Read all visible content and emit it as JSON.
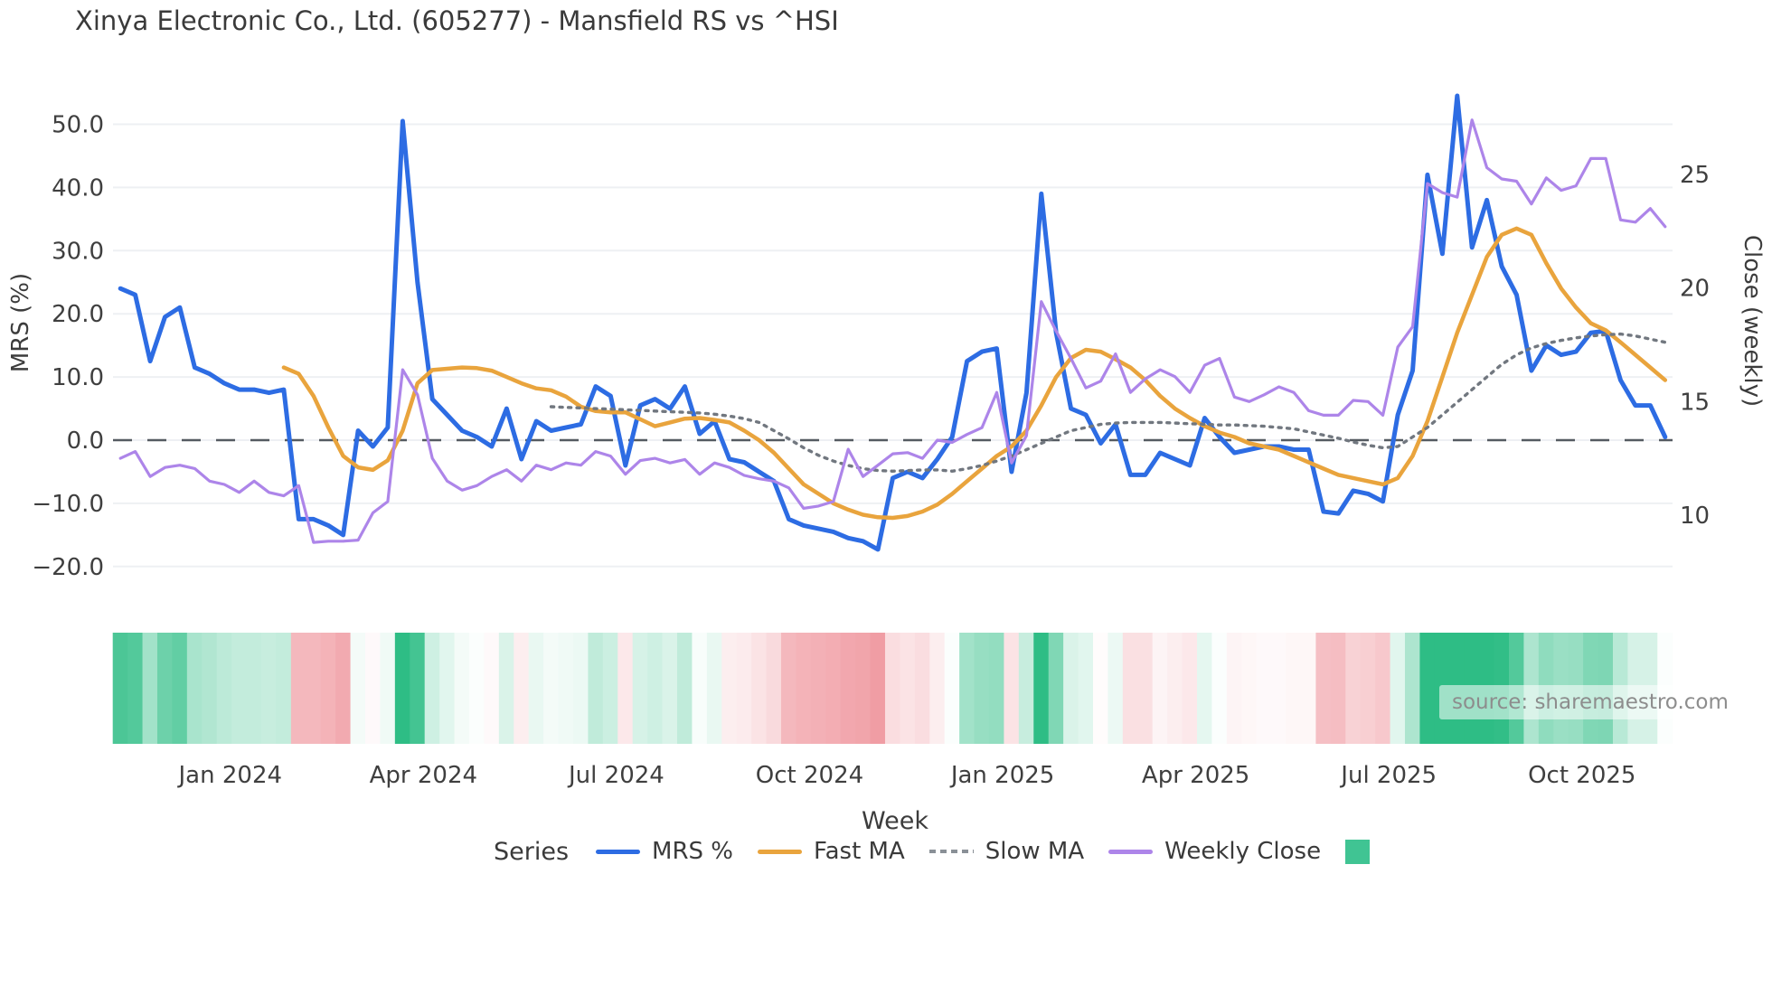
{
  "title": "Xinya Electronic Co., Ltd. (605277) - Mansfield RS vs ^HSI",
  "source_note": "source: sharemaestro.com",
  "legend": {
    "title": "Series",
    "entries": [
      {
        "label": "MRS %",
        "swatch": "line",
        "color": "#2d6ce3"
      },
      {
        "label": "Fast MA",
        "swatch": "line",
        "color": "#e9a43d"
      },
      {
        "label": "Slow MA",
        "swatch": "dashed",
        "color": "#8a9097"
      },
      {
        "label": "Weekly Close",
        "swatch": "line",
        "color": "#ad85e9"
      },
      {
        "label": "",
        "swatch": "square",
        "color": "#40c493"
      }
    ]
  },
  "chart_data": {
    "type": "line",
    "title": "Xinya Electronic Co., Ltd. (605277) - Mansfield RS vs ^HSI",
    "xlabel": "Week",
    "ylabel_left": "MRS (%)",
    "ylabel_right": "Close (weekly)",
    "weeks": 105,
    "x_ticks": [
      {
        "label": "Jan 2024",
        "week": 7.4
      },
      {
        "label": "Apr 2024",
        "week": 20.4
      },
      {
        "label": "Jul 2024",
        "week": 33.4
      },
      {
        "label": "Oct 2024",
        "week": 46.4
      },
      {
        "label": "Jan 2025",
        "week": 59.4
      },
      {
        "label": "Apr 2025",
        "week": 72.4
      },
      {
        "label": "Jul 2025",
        "week": 85.4
      },
      {
        "label": "Oct 2025",
        "week": 98.4
      }
    ],
    "y_left_ticks": [
      {
        "label": "50.0",
        "value": 50
      },
      {
        "label": "40.0",
        "value": 40
      },
      {
        "label": "30.0",
        "value": 30
      },
      {
        "label": "20.0",
        "value": 20
      },
      {
        "label": "10.0",
        "value": 10
      },
      {
        "label": "0.0",
        "value": 0
      },
      {
        "label": "−10.0",
        "value": -10
      },
      {
        "label": "−20.0",
        "value": -20
      }
    ],
    "y_right_ticks": [
      {
        "label": "25",
        "value": 25
      },
      {
        "label": "20",
        "value": 20
      },
      {
        "label": "15",
        "value": 15
      },
      {
        "label": "10",
        "value": 10
      }
    ],
    "zero_line": {
      "value": 0,
      "style": "dashed",
      "color": "#555b61"
    },
    "grid": {
      "show": true,
      "color": "#eef0f3"
    },
    "series": [
      {
        "name": "MRS %",
        "axis": "left",
        "color": "#2d6ce3",
        "width": 5,
        "dash": null,
        "values": [
          24,
          23,
          12.5,
          19.5,
          21,
          11.5,
          10.5,
          9,
          8,
          8,
          7.5,
          8,
          -12.5,
          -12.5,
          -13.5,
          -15,
          1.5,
          -1,
          2,
          50.5,
          25,
          6.5,
          4,
          1.5,
          0.5,
          -1,
          5,
          -3,
          3,
          1.5,
          2,
          2.5,
          8.5,
          7,
          -4,
          5.5,
          6.5,
          5,
          8.5,
          1,
          3,
          -3,
          -3.5,
          -5,
          -6.5,
          -12.5,
          -13.5,
          -14,
          -14.5,
          -15.5,
          -16,
          -17.3,
          -6,
          -5,
          -6,
          -3,
          0.5,
          12.5,
          14,
          14.5,
          -5,
          7.5,
          39,
          17,
          5,
          4,
          -0.5,
          2.5,
          -5.5,
          -5.5,
          -2,
          -3,
          -4,
          3.5,
          0.5,
          -2,
          -1.5,
          -1,
          -1,
          -1.5,
          -1.5,
          -11.3,
          -11.6,
          -8,
          -8.5,
          -9.7,
          4,
          11,
          42,
          29.5,
          54.5,
          30.5,
          38,
          27.5,
          23,
          11,
          15,
          13.5,
          14,
          17,
          17.3,
          9.5,
          5.5,
          5.5,
          0.5
        ]
      },
      {
        "name": "Fast MA",
        "axis": "left",
        "color": "#e9a43d",
        "width": 4.5,
        "dash": null,
        "values": [
          null,
          null,
          null,
          null,
          null,
          null,
          null,
          null,
          null,
          null,
          null,
          11.5,
          10.5,
          7,
          2,
          -2.5,
          -4.3,
          -4.7,
          -3.2,
          1.5,
          9,
          11.1,
          11.3,
          11.5,
          11.4,
          11,
          10,
          9,
          8.2,
          7.9,
          6.9,
          5.3,
          4.6,
          4.4,
          4.4,
          3.3,
          2.2,
          2.8,
          3.4,
          3.5,
          3.2,
          2.8,
          1.5,
          0,
          -2,
          -4.5,
          -7,
          -8.5,
          -10,
          -11,
          -11.8,
          -12.2,
          -12.3,
          -12,
          -11.3,
          -10.2,
          -8.5,
          -6.5,
          -4.5,
          -2.5,
          -1,
          1.5,
          5.5,
          10,
          13,
          14.3,
          14,
          12.8,
          11.5,
          9.5,
          7,
          5,
          3.5,
          2.2,
          1.2,
          0.5,
          -0.5,
          -1,
          -1.5,
          -2.5,
          -3.5,
          -4.5,
          -5.5,
          -6,
          -6.5,
          -7,
          -6,
          -2.5,
          3,
          10,
          17,
          23,
          29,
          32.5,
          33.5,
          32.5,
          28,
          24,
          21,
          18.5,
          17.4,
          15.5,
          13.5,
          11.5,
          9.5
        ]
      },
      {
        "name": "Slow MA",
        "axis": "left",
        "color": "#71777f",
        "width": 3.4,
        "dash": "3 6.5",
        "values": [
          null,
          null,
          null,
          null,
          null,
          null,
          null,
          null,
          null,
          null,
          null,
          null,
          null,
          null,
          null,
          null,
          null,
          null,
          null,
          null,
          null,
          null,
          null,
          null,
          null,
          null,
          null,
          null,
          null,
          5.3,
          5.2,
          5.1,
          5.0,
          4.9,
          4.8,
          4.7,
          4.6,
          4.5,
          4.4,
          4.3,
          4.1,
          3.8,
          3.4,
          2.8,
          1.5,
          0.2,
          -1.2,
          -2.4,
          -3.3,
          -4.0,
          -4.5,
          -4.8,
          -4.9,
          -4.8,
          -4.7,
          -4.7,
          -4.9,
          -4.5,
          -4.0,
          -3.3,
          -2.5,
          -1.5,
          -0.5,
          0.5,
          1.5,
          2.0,
          2.5,
          2.7,
          2.8,
          2.8,
          2.8,
          2.7,
          2.6,
          2.5,
          2.4,
          2.4,
          2.3,
          2.2,
          2.0,
          1.8,
          1.3,
          0.8,
          0.3,
          -0.3,
          -0.8,
          -1.2,
          -1.0,
          0.5,
          2.0,
          4.0,
          6.0,
          8.0,
          10.0,
          12.0,
          13.5,
          14.6,
          15.3,
          15.8,
          16.2,
          16.5,
          16.7,
          16.8,
          16.5,
          16.0,
          15.5
        ]
      },
      {
        "name": "Weekly Close",
        "axis": "right",
        "color": "#ad85e9",
        "width": 3.2,
        "dash": null,
        "values": [
          12.5,
          12.8,
          11.7,
          12.1,
          12.2,
          12.05,
          11.5,
          11.35,
          11.0,
          11.5,
          11.0,
          10.85,
          11.3,
          8.8,
          8.85,
          8.85,
          8.9,
          10.1,
          10.6,
          16.4,
          15.3,
          12.5,
          11.5,
          11.1,
          11.3,
          11.7,
          12.0,
          11.5,
          12.2,
          12.0,
          12.3,
          12.2,
          12.8,
          12.6,
          11.8,
          12.4,
          12.5,
          12.3,
          12.45,
          11.8,
          12.3,
          12.1,
          11.75,
          11.6,
          11.5,
          11.2,
          10.3,
          10.4,
          10.6,
          12.9,
          11.7,
          12.2,
          12.7,
          12.75,
          12.5,
          13.3,
          13.2,
          13.55,
          13.85,
          15.4,
          12.3,
          13.5,
          19.4,
          18.1,
          16.9,
          15.6,
          15.9,
          17.1,
          15.4,
          16.0,
          16.4,
          16.1,
          15.4,
          16.6,
          16.9,
          15.2,
          15.0,
          15.3,
          15.65,
          15.4,
          14.6,
          14.4,
          14.4,
          15.05,
          15.0,
          14.4,
          17.4,
          18.3,
          24.6,
          24.2,
          24.0,
          27.4,
          25.3,
          24.8,
          24.7,
          23.7,
          24.85,
          24.3,
          24.5,
          25.7,
          25.7,
          23.0,
          22.9,
          23.5,
          22.7
        ]
      }
    ],
    "heatmap": {
      "type": "heatmap",
      "basis": "MRS %",
      "positive_color": "#2ebd85",
      "negative_color": "#ee8e96",
      "neutral_color": "#ffffff",
      "positive_scale_max": 28,
      "negative_scale_max": 20
    }
  }
}
